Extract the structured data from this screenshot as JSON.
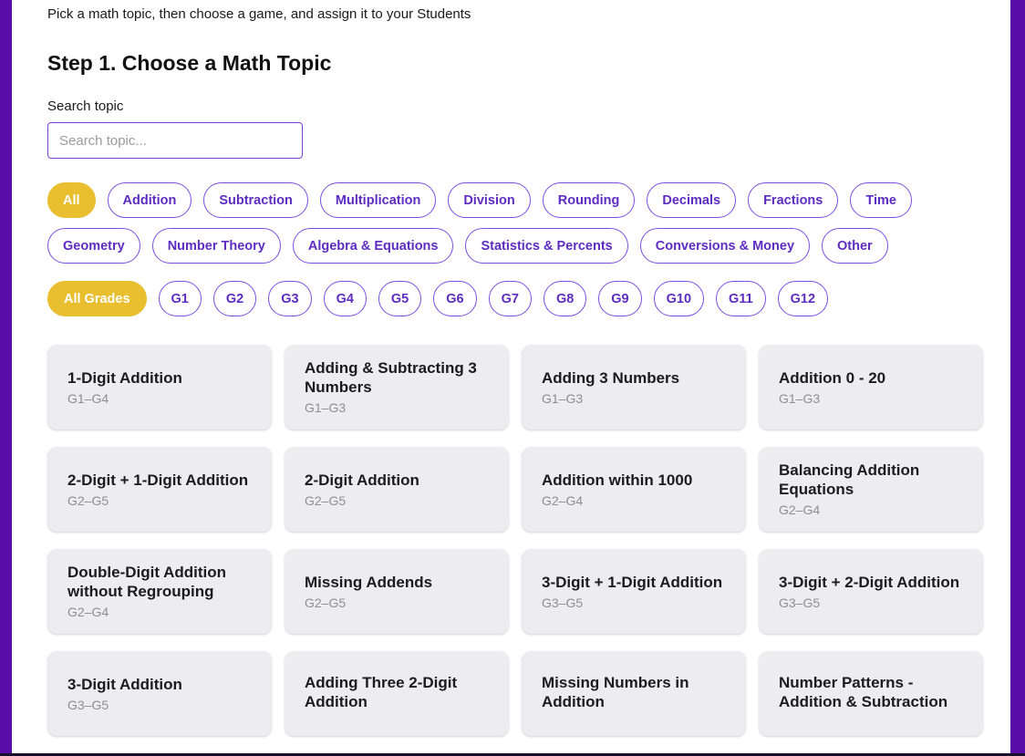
{
  "page": {
    "subtitle": "Pick a math topic, then choose a game, and assign it to your Students",
    "heading": "Step 1. Choose a Math Topic"
  },
  "search": {
    "label": "Search topic",
    "placeholder": "Search topic..."
  },
  "topic_filters": [
    {
      "label": "All",
      "selected": true
    },
    {
      "label": "Addition",
      "selected": false
    },
    {
      "label": "Subtraction",
      "selected": false
    },
    {
      "label": "Multiplication",
      "selected": false
    },
    {
      "label": "Division",
      "selected": false
    },
    {
      "label": "Rounding",
      "selected": false
    },
    {
      "label": "Decimals",
      "selected": false
    },
    {
      "label": "Fractions",
      "selected": false
    },
    {
      "label": "Time",
      "selected": false
    },
    {
      "label": "Geometry",
      "selected": false
    },
    {
      "label": "Number Theory",
      "selected": false
    },
    {
      "label": "Algebra & Equations",
      "selected": false
    },
    {
      "label": "Statistics & Percents",
      "selected": false
    },
    {
      "label": "Conversions & Money",
      "selected": false
    },
    {
      "label": "Other",
      "selected": false
    }
  ],
  "grade_filters": [
    {
      "label": "All Grades",
      "selected": true
    },
    {
      "label": "G1",
      "selected": false
    },
    {
      "label": "G2",
      "selected": false
    },
    {
      "label": "G3",
      "selected": false
    },
    {
      "label": "G4",
      "selected": false
    },
    {
      "label": "G5",
      "selected": false
    },
    {
      "label": "G6",
      "selected": false
    },
    {
      "label": "G7",
      "selected": false
    },
    {
      "label": "G8",
      "selected": false
    },
    {
      "label": "G9",
      "selected": false
    },
    {
      "label": "G10",
      "selected": false
    },
    {
      "label": "G11",
      "selected": false
    },
    {
      "label": "G12",
      "selected": false
    }
  ],
  "topics": [
    {
      "title": "1-Digit Addition",
      "grades": "G1–G4"
    },
    {
      "title": "Adding & Subtracting 3 Numbers",
      "grades": "G1–G3"
    },
    {
      "title": "Adding 3 Numbers",
      "grades": "G1–G3"
    },
    {
      "title": "Addition 0 - 20",
      "grades": "G1–G3"
    },
    {
      "title": "2-Digit + 1-Digit Addition",
      "grades": "G2–G5"
    },
    {
      "title": "2-Digit Addition",
      "grades": "G2–G5"
    },
    {
      "title": "Addition within 1000",
      "grades": "G2–G4"
    },
    {
      "title": "Balancing Addition Equations",
      "grades": "G2–G4"
    },
    {
      "title": "Double-Digit Addition without Regrouping",
      "grades": "G2–G4"
    },
    {
      "title": "Missing Addends",
      "grades": "G2–G5"
    },
    {
      "title": "3-Digit + 1-Digit Addition",
      "grades": "G3–G5"
    },
    {
      "title": "3-Digit + 2-Digit Addition",
      "grades": "G3–G5"
    },
    {
      "title": "3-Digit Addition",
      "grades": "G3–G5"
    },
    {
      "title": "Adding Three 2-Digit Addition",
      "grades": ""
    },
    {
      "title": "Missing Numbers in Addition",
      "grades": ""
    },
    {
      "title": "Number Patterns - Addition & Subtraction",
      "grades": ""
    }
  ],
  "colors": {
    "accent_purple": "#5a0ca8",
    "pill_border_purple": "#7a4ee0",
    "pill_text_purple": "#5e2cc2",
    "selected_yellow": "#e9be2f",
    "card_background": "#ededef",
    "grade_text_gray": "#8e8e93"
  }
}
